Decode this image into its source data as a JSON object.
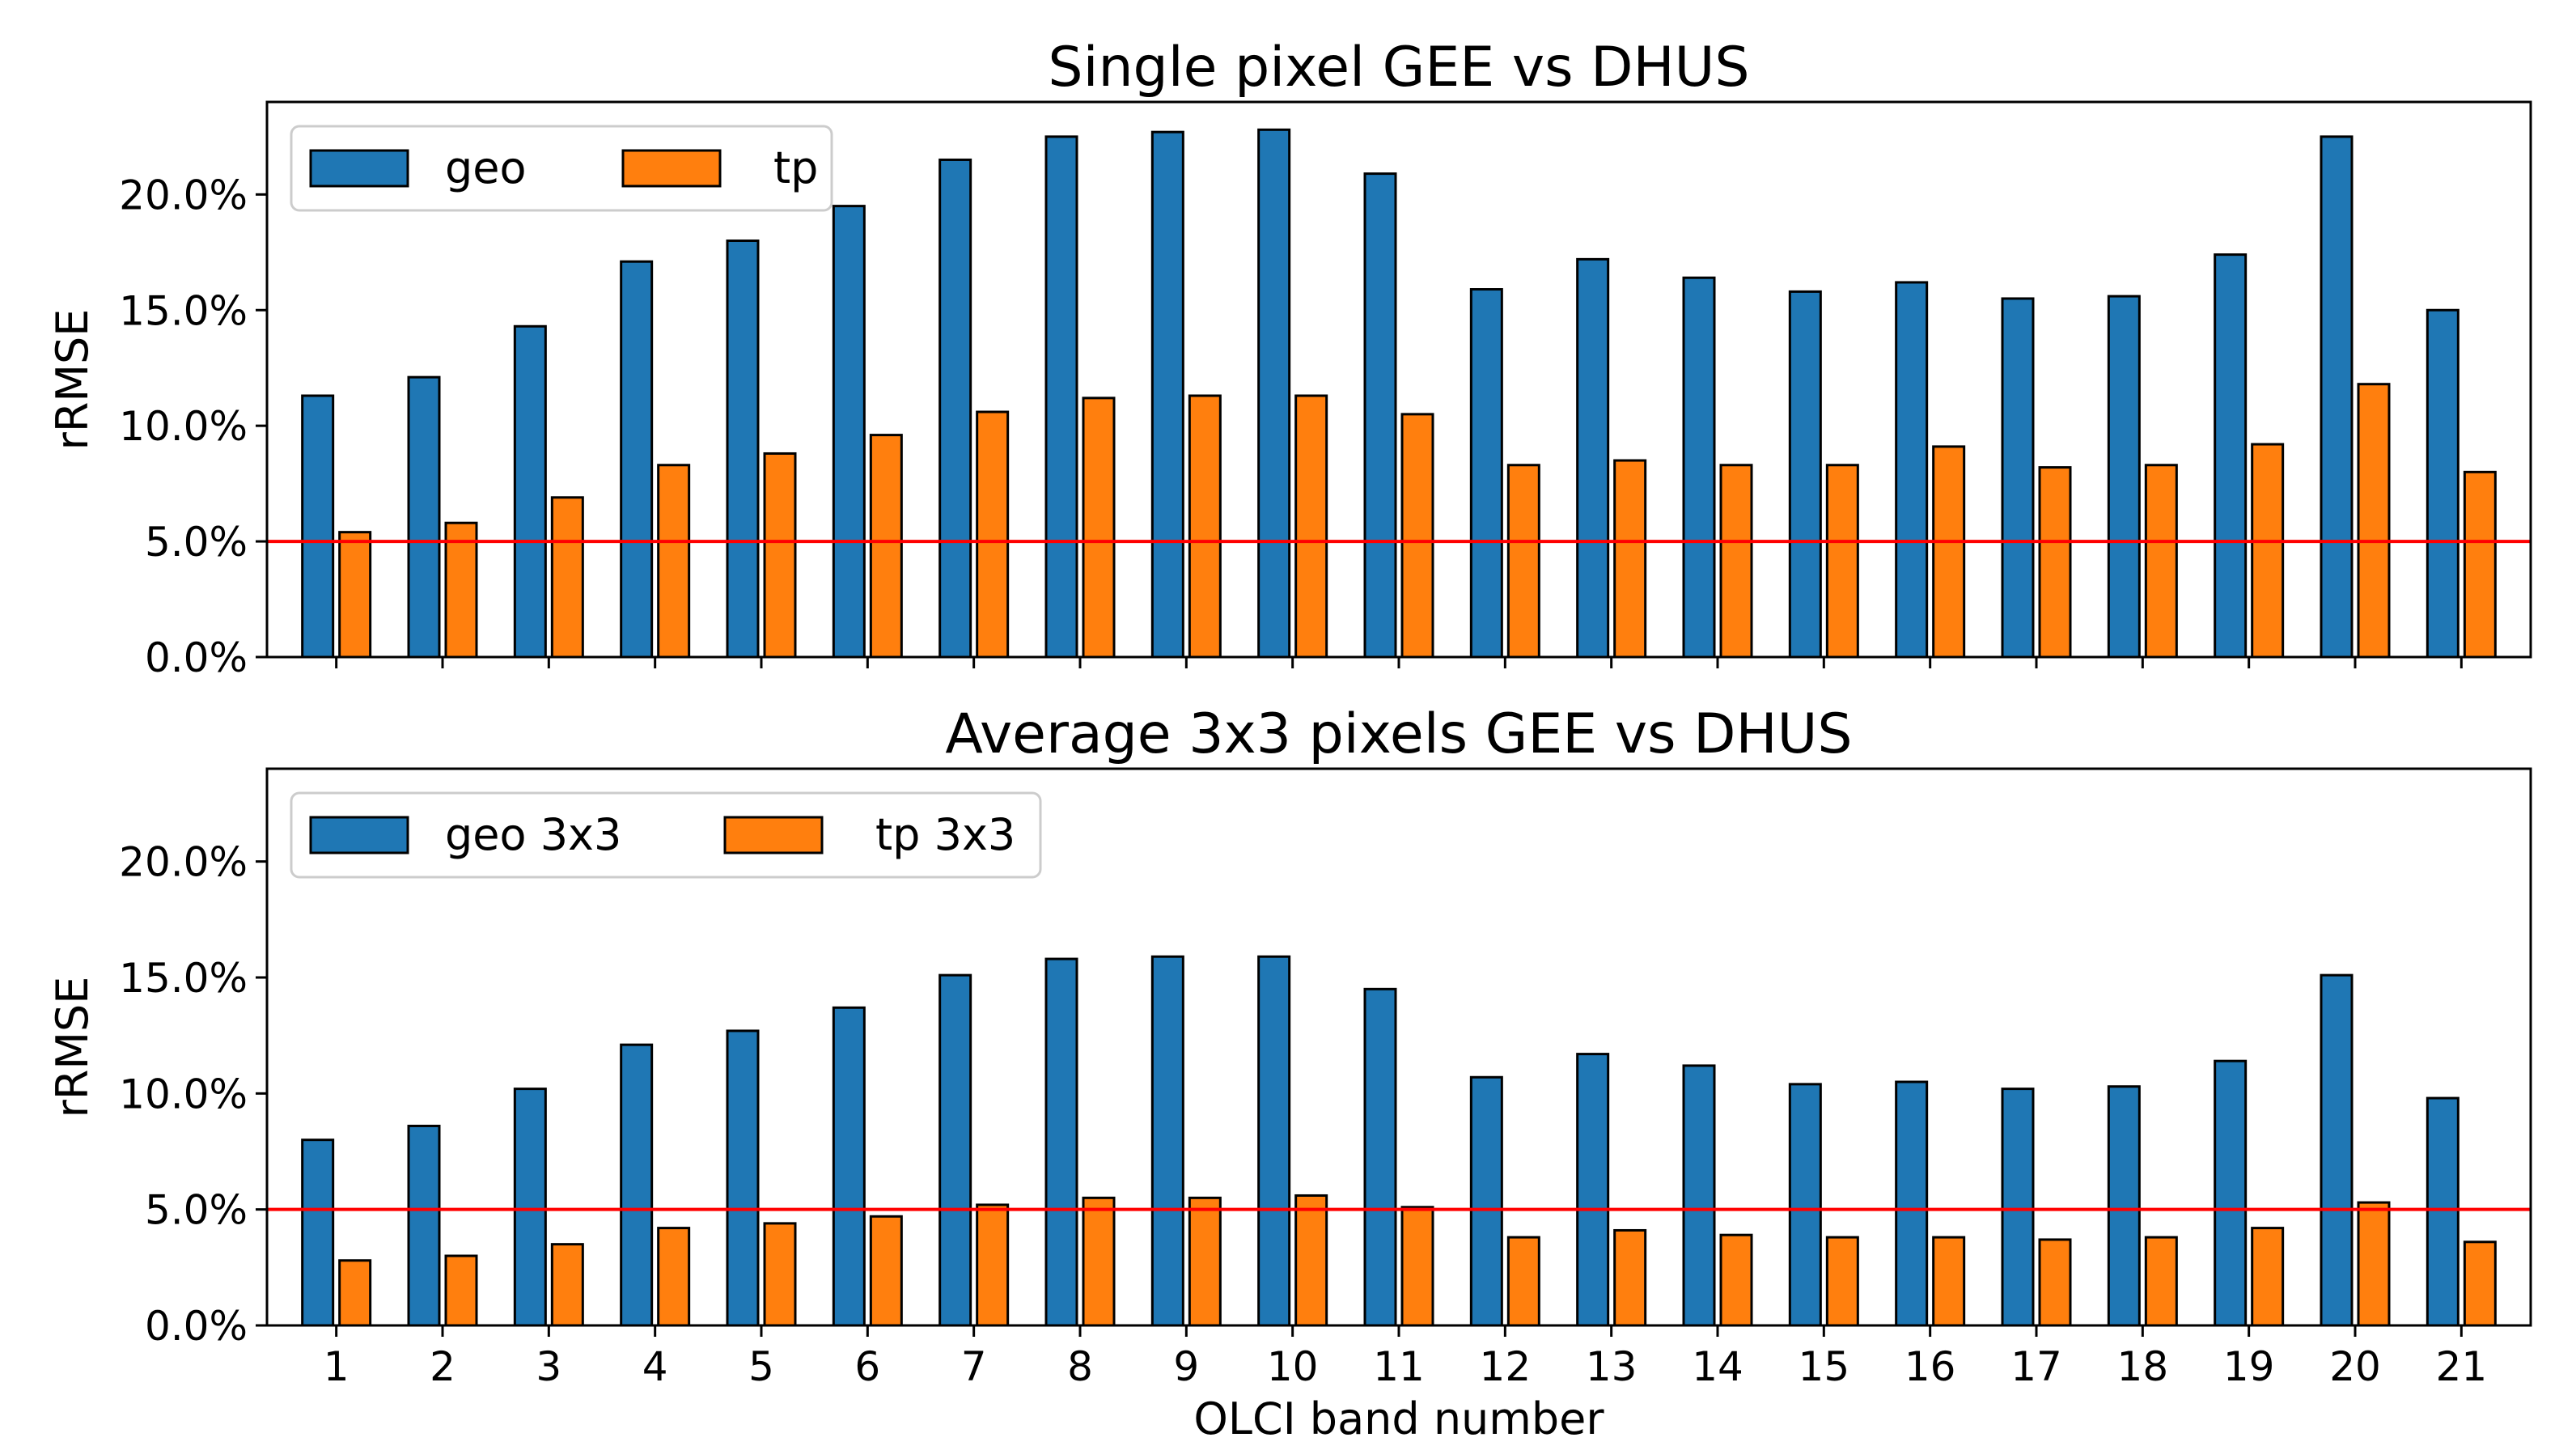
{
  "colors": {
    "geo": "#1f77b4",
    "tp": "#ff7f0e",
    "reference_line": "#ff0000"
  },
  "chart_data": [
    {
      "type": "bar",
      "title": "Single pixel GEE vs DHUS",
      "xlabel": "",
      "ylabel": "rRMSE",
      "ylim": [
        0,
        24
      ],
      "yticks": [
        0,
        5,
        10,
        15,
        20
      ],
      "ytick_labels": [
        "0.0%",
        "5.0%",
        "10.0%",
        "15.0%",
        "20.0%"
      ],
      "reference_line": 5,
      "legend_position": "top-left",
      "categories": [
        "1",
        "2",
        "3",
        "4",
        "5",
        "6",
        "7",
        "8",
        "9",
        "10",
        "11",
        "12",
        "13",
        "14",
        "15",
        "16",
        "17",
        "18",
        "19",
        "20",
        "21"
      ],
      "series": [
        {
          "name": "geo",
          "color": "#1f77b4",
          "values": [
            11.3,
            12.1,
            14.3,
            17.1,
            18.0,
            19.5,
            21.5,
            22.5,
            22.7,
            22.8,
            20.9,
            15.9,
            17.2,
            16.4,
            15.8,
            16.2,
            15.5,
            15.6,
            17.4,
            22.5,
            15.0
          ]
        },
        {
          "name": "tp",
          "color": "#ff7f0e",
          "values": [
            5.4,
            5.8,
            6.9,
            8.3,
            8.8,
            9.6,
            10.6,
            11.2,
            11.3,
            11.3,
            10.5,
            8.3,
            8.5,
            8.3,
            8.3,
            9.1,
            8.2,
            8.3,
            9.2,
            11.8,
            8.0
          ]
        }
      ]
    },
    {
      "type": "bar",
      "title": "Average 3x3 pixels GEE vs DHUS",
      "xlabel": "OLCI band number",
      "ylabel": "rRMSE",
      "ylim": [
        0,
        24
      ],
      "yticks": [
        0,
        5,
        10,
        15,
        20
      ],
      "ytick_labels": [
        "0.0%",
        "5.0%",
        "10.0%",
        "15.0%",
        "20.0%"
      ],
      "reference_line": 5,
      "legend_position": "top-left",
      "categories": [
        "1",
        "2",
        "3",
        "4",
        "5",
        "6",
        "7",
        "8",
        "9",
        "10",
        "11",
        "12",
        "13",
        "14",
        "15",
        "16",
        "17",
        "18",
        "19",
        "20",
        "21"
      ],
      "series": [
        {
          "name": "geo 3x3",
          "color": "#1f77b4",
          "values": [
            8.0,
            8.6,
            10.2,
            12.1,
            12.7,
            13.7,
            15.1,
            15.8,
            15.9,
            15.9,
            14.5,
            10.7,
            11.7,
            11.2,
            10.4,
            10.5,
            10.2,
            10.3,
            11.4,
            15.1,
            9.8
          ]
        },
        {
          "name": "tp 3x3",
          "color": "#ff7f0e",
          "values": [
            2.8,
            3.0,
            3.5,
            4.2,
            4.4,
            4.7,
            5.2,
            5.5,
            5.5,
            5.6,
            5.1,
            3.8,
            4.1,
            3.9,
            3.8,
            3.8,
            3.7,
            3.8,
            4.2,
            5.3,
            3.6
          ]
        }
      ]
    }
  ]
}
